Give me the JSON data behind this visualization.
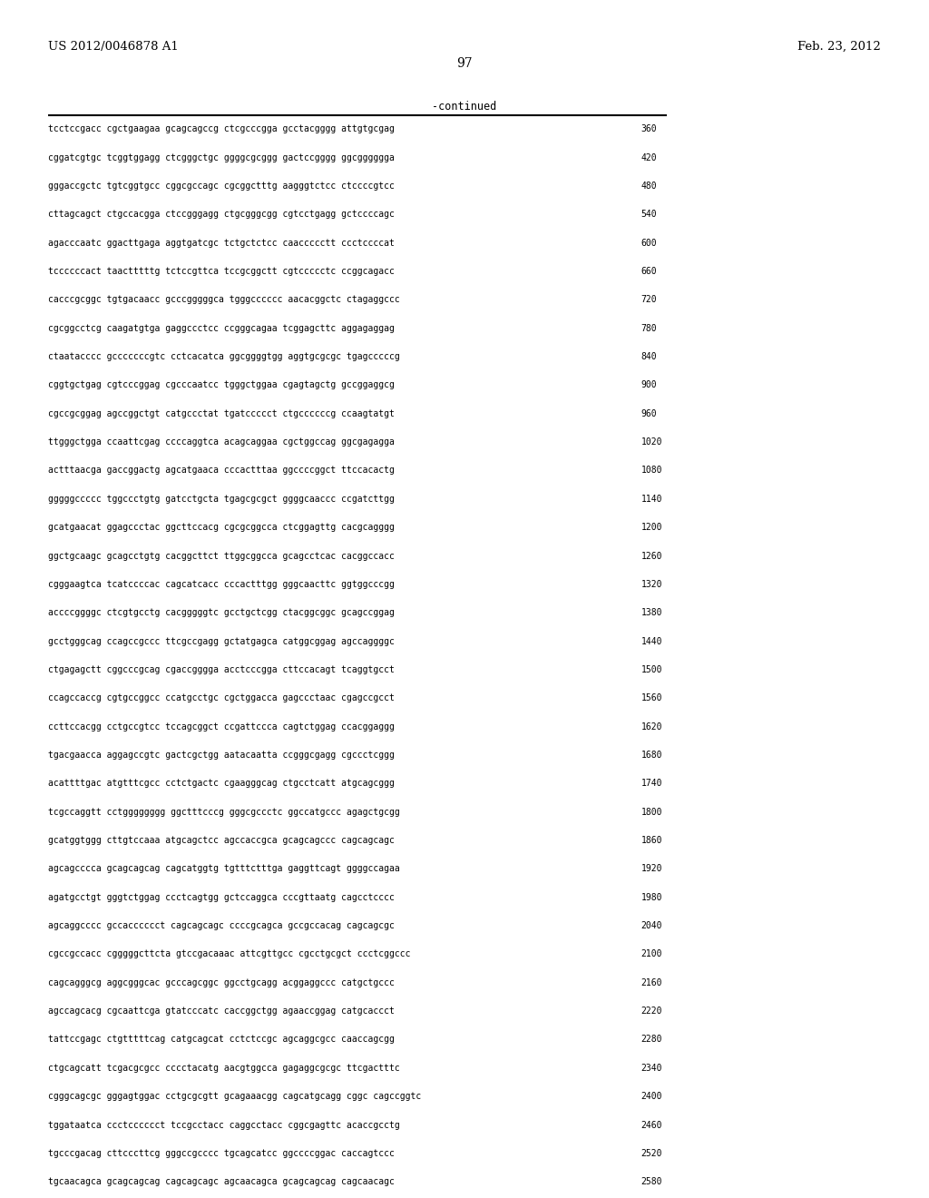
{
  "header_left": "US 2012/0046878 A1",
  "header_right": "Feb. 23, 2012",
  "page_number": "97",
  "continued_label": "-continued",
  "background_color": "#ffffff",
  "text_color": "#000000",
  "sequence_lines": [
    [
      "tcctccgacc cgctgaagaa gcagcagccg ctcgcccgga gcctacgggg attgtgcgag",
      "360"
    ],
    [
      "cggatcgtgc tcggtggagg ctcgggctgc ggggcgcggg gactccgggg ggcgggggga",
      "420"
    ],
    [
      "gggaccgctc tgtcggtgcc cggcgccagc cgcggctttg aagggtctcc ctccccgtcc",
      "480"
    ],
    [
      "cttagcagct ctgccacgga ctccgggagg ctgcgggcgg cgtcctgagg gctccccagc",
      "540"
    ],
    [
      "agacccaatc ggacttgaga aggtgatcgc tctgctctcc caaccccctt ccctccccat",
      "600"
    ],
    [
      "tccccccact taactttttg tctccgttca tccgcggctt cgtccccctc ccggcagacc",
      "660"
    ],
    [
      "cacccgcggc tgtgacaacc gcccgggggca tgggcccccc aacacggctc ctagaggccc",
      "720"
    ],
    [
      "cgcggcctcg caagatgtga gaggccctcc ccgggcagaa tcggagcttc aggagaggag",
      "780"
    ],
    [
      "ctaatacccc gcccccccgtc cctcacatca ggcggggtgg aggtgcgcgc tgagcccccg",
      "840"
    ],
    [
      "cggtgctgag cgtcccggag cgcccaatcc tgggctggaa cgagtagctg gccggaggcg",
      "900"
    ],
    [
      "cgccgcggag agccggctgt catgccctat tgatccccct ctgccccccg ccaagtatgt",
      "960"
    ],
    [
      "ttgggctgga ccaattcgag ccccaggtca acagcaggaa cgctggccag ggcgagagga",
      "1020"
    ],
    [
      "actttaacga gaccggactg agcatgaaca cccactttaa ggccccggct ttccacactg",
      "1080"
    ],
    [
      "gggggccccc tggccctgtg gatcctgcta tgagcgcgct ggggcaaccc ccgatcttgg",
      "1140"
    ],
    [
      "gcatgaacat ggagccctac ggcttccacg cgcgcggcca ctcggagttg cacgcagggg",
      "1200"
    ],
    [
      "ggctgcaagc gcagcctgtg cacggcttct ttggcggcca gcagcctcac cacggccacc",
      "1260"
    ],
    [
      "cgggaagtca tcatccccac cagcatcacc cccactttgg gggcaacttc ggtggcccgg",
      "1320"
    ],
    [
      "accccggggc ctcgtgcctg cacgggggtc gcctgctcgg ctacggcggc gcagccggag",
      "1380"
    ],
    [
      "gcctgggcag ccagccgccc ttcgccgagg gctatgagca catggcggag agccaggggc",
      "1440"
    ],
    [
      "ctgagagctt cggcccgcag cgaccgggga acctcccgga cttccacagt tcaggtgcct",
      "1500"
    ],
    [
      "ccagccaccg cgtgccggcc ccatgcctgc cgctggacca gagccctaac cgagccgcct",
      "1560"
    ],
    [
      "ccttccacgg cctgccgtcc tccagcggct ccgattccca cagtctggag ccacggaggg",
      "1620"
    ],
    [
      "tgacgaacca aggagccgtc gactcgctgg aatacaatta ccgggcgagg cgccctcggg",
      "1680"
    ],
    [
      "acattttgac atgtttcgcc cctctgactc cgaagggcag ctgcctcatt atgcagcggg",
      "1740"
    ],
    [
      "tcgccaggtt cctgggggggg ggctttcccg gggcgccctc ggccatgccc agagctgcgg",
      "1800"
    ],
    [
      "gcatggtggg cttgtccaaa atgcagctcc agccaccgca gcagcagccc cagcagcagc",
      "1860"
    ],
    [
      "agcagcccca gcagcagcag cagcatggtg tgtttctttga gaggttcagt ggggccagaa",
      "1920"
    ],
    [
      "agatgcctgt gggtctggag ccctcagtgg gctccaggca cccgttaatg cagcctcccc",
      "1980"
    ],
    [
      "agcaggcccc gccacccccct cagcagcagc ccccgcagca gccgccacag cagcagcgc",
      "2040"
    ],
    [
      "cgccgccacc cgggggcttcta gtccgacaaac attcgttgcc cgcctgcgct ccctcggccc",
      "2100"
    ],
    [
      "cagcagggcg aggcgggcac gcccagcggc ggcctgcagg acggaggccc catgctgccc",
      "2160"
    ],
    [
      "agccagcacg cgcaattcga gtatcccatc caccggctgg agaaccggag catgcaccct",
      "2220"
    ],
    [
      "tattccgagc ctgtttttcag catgcagcat cctctccgc agcaggcgcc caaccagcgg",
      "2280"
    ],
    [
      "ctgcagcatt tcgacgcgcc cccctacatg aacgtggcca gagaggcgcgc ttcgactttc",
      "2340"
    ],
    [
      "cgggcagcgc gggagtggac cctgcgcgtt gcagaaacgg cagcatgcagg cggc cagccggtc",
      "2400"
    ],
    [
      "tggataatca ccctcccccct tccgcctacc caggcctacc cggcgagttc acaccgcctg",
      "2460"
    ],
    [
      "tgcccgacag cttcccttcg gggccgcccc tgcagcatcc ggccccggac caccagtccc",
      "2520"
    ],
    [
      "tgcaacagca gcagcagcag cagcagcagc agcaacagca gcagcagcag cagcaacagc",
      "2580"
    ]
  ]
}
